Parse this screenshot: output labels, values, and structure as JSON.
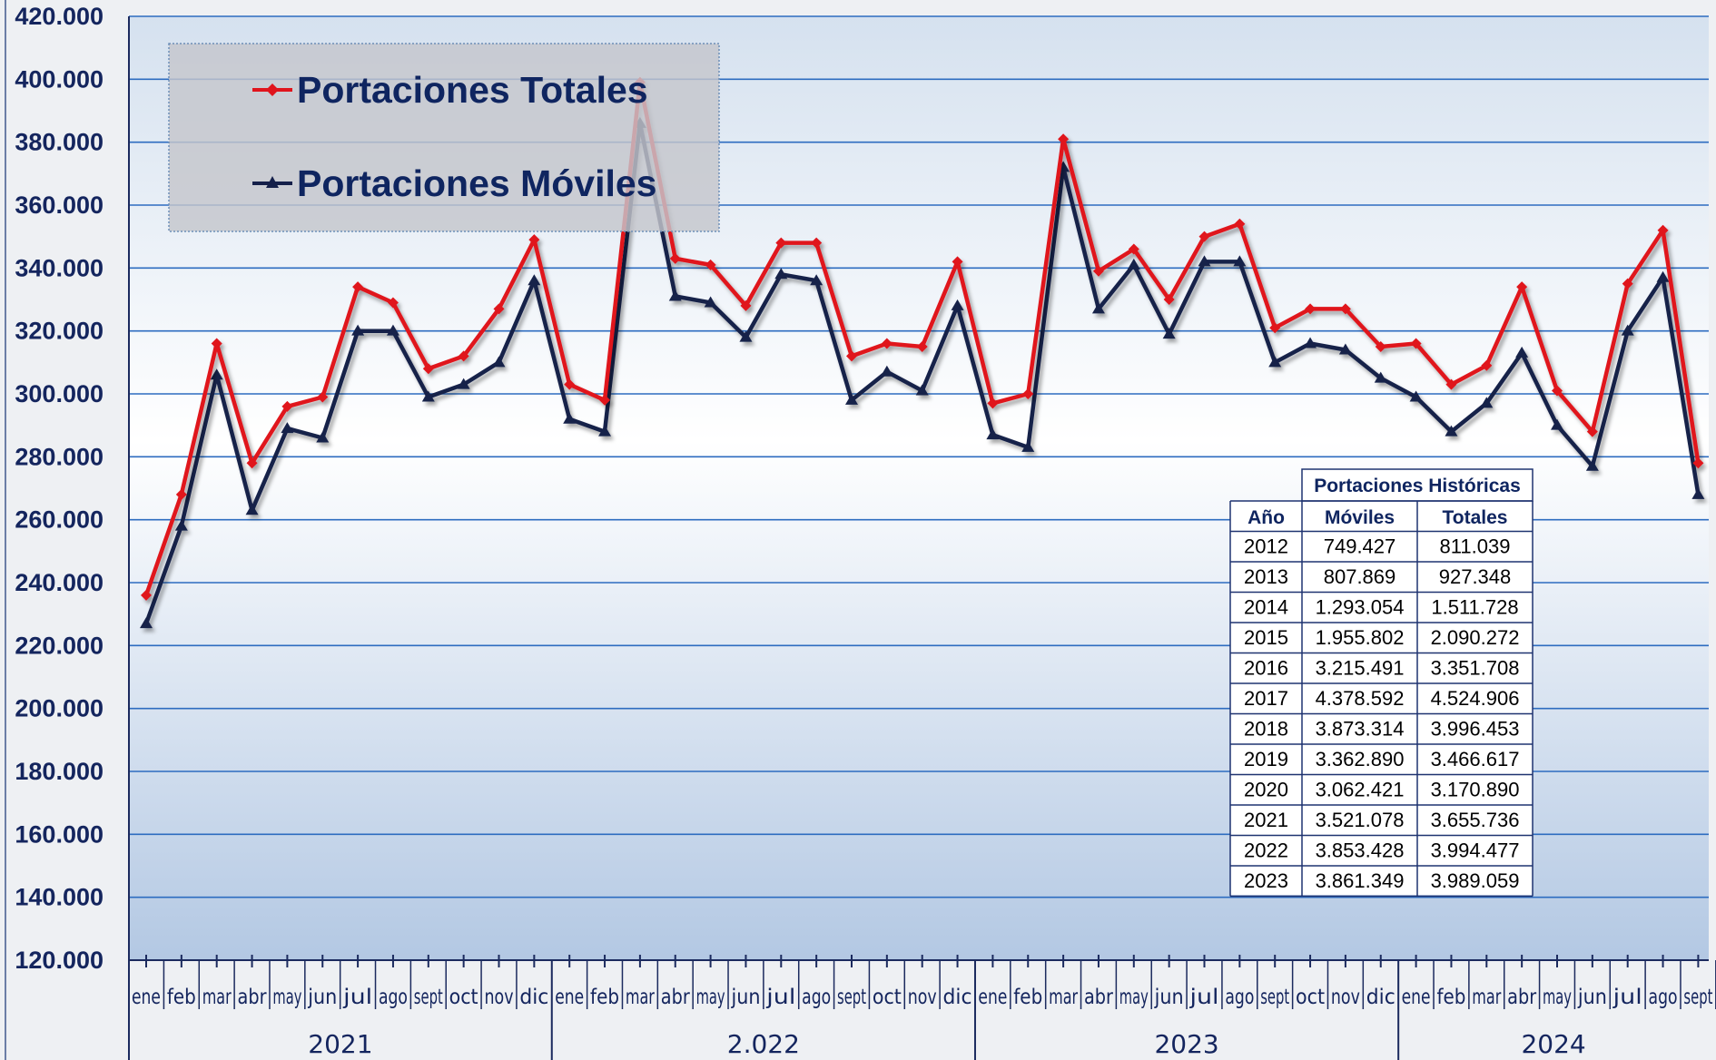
{
  "colors": {
    "totales": "#e0141c",
    "moviles": "#15204a",
    "gridline": "#2d6cc0",
    "axis_text": "#14255e"
  },
  "chart_data": {
    "type": "line",
    "title": "",
    "xlabel": "",
    "ylabel": "",
    "ylim": [
      120000,
      420000
    ],
    "ytick_step": 20000,
    "ytick_labels": [
      "120.000",
      "140.000",
      "160.000",
      "180.000",
      "200.000",
      "220.000",
      "240.000",
      "260.000",
      "280.000",
      "300.000",
      "320.000",
      "340.000",
      "360.000",
      "380.000",
      "400.000",
      "420.000"
    ],
    "grid": true,
    "legend_position": "top-left",
    "categories": [
      "ene",
      "feb",
      "mar",
      "abr",
      "may",
      "jun",
      "jul",
      "ago",
      "sept",
      "oct",
      "nov",
      "dic",
      "ene",
      "feb",
      "mar",
      "abr",
      "may",
      "jun",
      "jul",
      "ago",
      "sept",
      "oct",
      "nov",
      "dic",
      "ene",
      "feb",
      "mar",
      "abr",
      "may",
      "jun",
      "jul",
      "ago",
      "sept",
      "oct",
      "nov",
      "dic",
      "ene",
      "feb",
      "mar",
      "abr",
      "may",
      "jun",
      "jul",
      "ago",
      "sept"
    ],
    "year_groups": [
      {
        "label": "2021",
        "count": 12
      },
      {
        "label": "2.022",
        "count": 12
      },
      {
        "label": "2023",
        "count": 12
      },
      {
        "label": "2024",
        "count": 9
      }
    ],
    "series": [
      {
        "name": "Portaciones Totales",
        "marker": "diamond",
        "values": [
          236000,
          268000,
          316000,
          278000,
          296000,
          299000,
          334000,
          329000,
          308000,
          312000,
          327000,
          349000,
          303000,
          298000,
          399000,
          343000,
          341000,
          328000,
          348000,
          348000,
          312000,
          316000,
          315000,
          342000,
          297000,
          300000,
          381000,
          339000,
          346000,
          330000,
          350000,
          354000,
          321000,
          327000,
          327000,
          315000,
          316000,
          303000,
          309000,
          334000,
          301000,
          288000,
          335000,
          352000,
          278000
        ]
      },
      {
        "name": "Portaciones Móviles",
        "marker": "triangle",
        "values": [
          227000,
          258000,
          306000,
          263000,
          289000,
          286000,
          320000,
          320000,
          299000,
          303000,
          310000,
          336000,
          292000,
          288000,
          386000,
          331000,
          329000,
          318000,
          338000,
          336000,
          298000,
          307000,
          301000,
          328000,
          287000,
          283000,
          372000,
          327000,
          341000,
          319000,
          342000,
          342000,
          310000,
          316000,
          314000,
          305000,
          299000,
          288000,
          297000,
          313000,
          290000,
          277000,
          320000,
          337000,
          268000
        ]
      }
    ],
    "table": {
      "title": "Portaciones Históricas",
      "headers": [
        "Año",
        "Móviles",
        "Totales"
      ],
      "rows": [
        [
          "2012",
          "749.427",
          "811.039"
        ],
        [
          "2013",
          "807.869",
          "927.348"
        ],
        [
          "2014",
          "1.293.054",
          "1.511.728"
        ],
        [
          "2015",
          "1.955.802",
          "2.090.272"
        ],
        [
          "2016",
          "3.215.491",
          "3.351.708"
        ],
        [
          "2017",
          "4.378.592",
          "4.524.906"
        ],
        [
          "2018",
          "3.873.314",
          "3.996.453"
        ],
        [
          "2019",
          "3.362.890",
          "3.466.617"
        ],
        [
          "2020",
          "3.062.421",
          "3.170.890"
        ],
        [
          "2021",
          "3.521.078",
          "3.655.736"
        ],
        [
          "2022",
          "3.853.428",
          "3.994.477"
        ],
        [
          "2023",
          "3.861.349",
          "3.989.059"
        ]
      ]
    }
  }
}
